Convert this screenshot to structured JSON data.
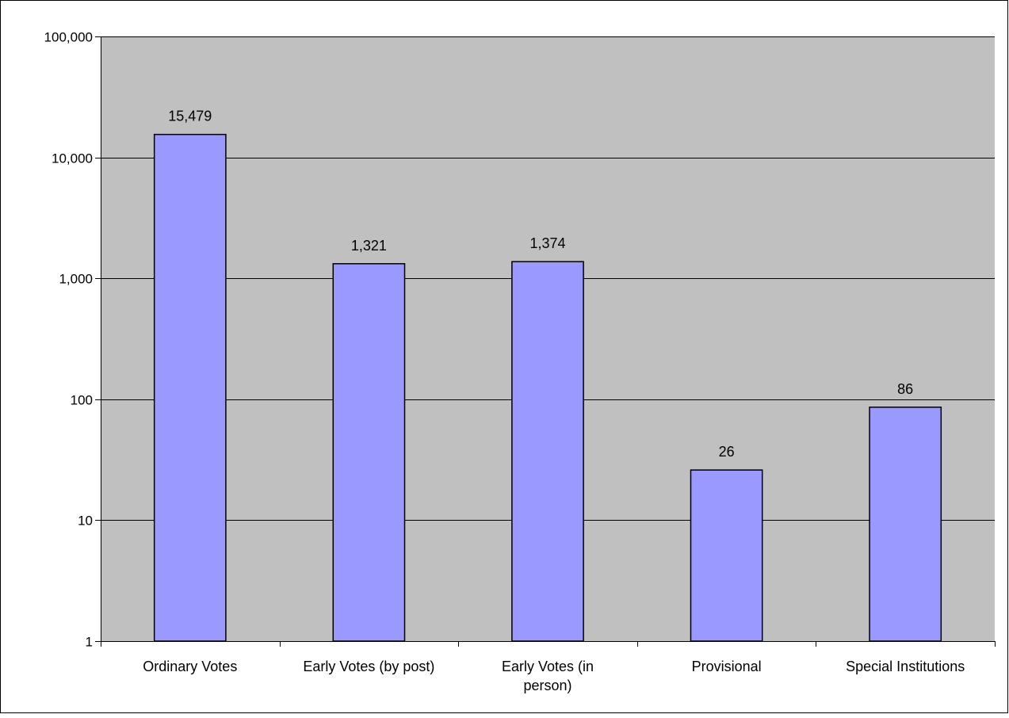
{
  "chart_data": {
    "type": "bar",
    "title": "",
    "xlabel": "",
    "ylabel": "",
    "yscale": "log",
    "ylim": [
      1,
      100000
    ],
    "grid": true,
    "legend": "none",
    "categories": [
      [
        "Ordinary Votes"
      ],
      [
        "Early Votes (by post)"
      ],
      [
        "Early Votes (in",
        "person)"
      ],
      [
        "Provisional"
      ],
      [
        "Special Institutions"
      ]
    ],
    "values": [
      15479,
      1321,
      1374,
      26,
      86
    ],
    "data_labels": [
      "15,479",
      "1,321",
      "1,374",
      "26",
      "86"
    ],
    "y_ticks": [
      {
        "value": 1,
        "label": "1"
      },
      {
        "value": 10,
        "label": "10"
      },
      {
        "value": 100,
        "label": "100"
      },
      {
        "value": 1000,
        "label": "1,000"
      },
      {
        "value": 10000,
        "label": "10,000"
      },
      {
        "value": 100000,
        "label": "100,000"
      }
    ],
    "colors": {
      "bar_fill": "#9999ff",
      "bar_stroke": "#000000",
      "plot_background": "#c0c0c0",
      "gridline": "#000000"
    }
  }
}
